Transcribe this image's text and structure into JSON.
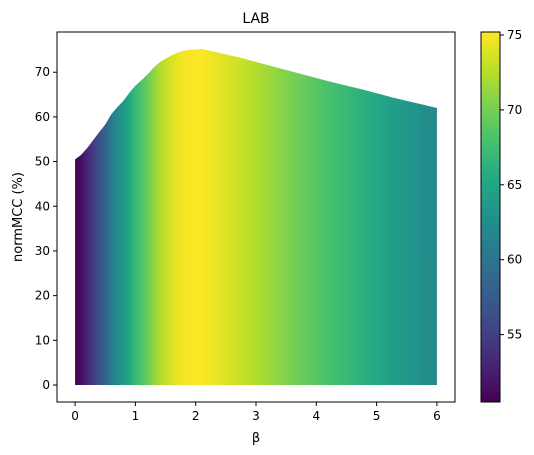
{
  "chart_data": {
    "type": "area",
    "title": "LAB",
    "xlabel": "β",
    "ylabel": "normMCC (%)",
    "xlim": [
      -0.3,
      6.3
    ],
    "ylim": [
      -3.8,
      79.0
    ],
    "x_ticks": [
      0,
      1,
      2,
      3,
      4,
      5,
      6
    ],
    "x_tick_labels": [
      "0",
      "1",
      "2",
      "3",
      "4",
      "5",
      "6"
    ],
    "y_ticks": [
      0,
      10,
      20,
      30,
      40,
      50,
      60,
      70
    ],
    "y_tick_labels": [
      "0",
      "10",
      "20",
      "30",
      "40",
      "50",
      "60",
      "70"
    ],
    "grid": false,
    "fill_baseline": 0,
    "color_encodes": "y",
    "x": [
      0,
      0.1,
      0.2,
      0.3,
      0.4,
      0.5,
      0.6,
      0.7,
      0.8,
      0.9,
      1.0,
      1.1,
      1.2,
      1.3,
      1.4,
      1.5,
      1.6,
      1.7,
      1.8,
      1.9,
      2.0,
      2.1,
      2.2,
      2.3,
      2.4,
      2.5,
      2.75,
      3.0,
      3.25,
      3.5,
      3.75,
      4.0,
      4.25,
      4.5,
      4.75,
      5.0,
      5.25,
      5.5,
      5.75,
      6.0
    ],
    "y": [
      50.5,
      51.5,
      53.0,
      54.8,
      56.6,
      58.3,
      60.6,
      62.2,
      63.6,
      65.4,
      67.0,
      68.2,
      69.5,
      71.0,
      72.2,
      73.0,
      73.8,
      74.4,
      74.8,
      75.0,
      75.1,
      75.2,
      74.9,
      74.6,
      74.3,
      74.0,
      73.2,
      72.3,
      71.4,
      70.5,
      69.6,
      68.7,
      67.8,
      67.0,
      66.2,
      65.3,
      64.4,
      63.6,
      62.8,
      62.0
    ],
    "colorbar": {
      "colormap": "viridis",
      "range": [
        50.5,
        75.2
      ],
      "ticks": [
        55,
        60,
        65,
        70,
        75
      ],
      "tick_labels": [
        "55",
        "60",
        "65",
        "70",
        "75"
      ]
    }
  }
}
